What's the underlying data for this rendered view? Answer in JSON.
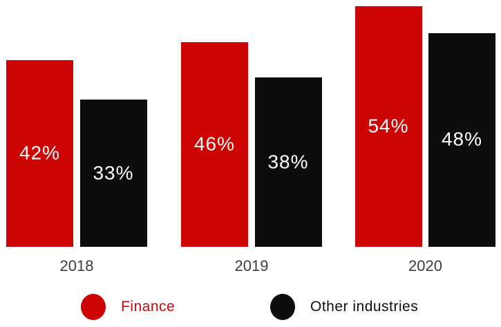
{
  "chart_data": {
    "type": "bar",
    "title": "",
    "xlabel": "",
    "ylabel": "",
    "categories": [
      "2018",
      "2019",
      "2020"
    ],
    "series": [
      {
        "name": "Finance",
        "color": "#cc0404",
        "values": [
          42,
          46,
          54
        ],
        "labels": [
          "42%",
          "46%",
          "54%"
        ]
      },
      {
        "name": "Other industries",
        "color": "#0d0d0d",
        "values": [
          33,
          38,
          48
        ],
        "labels": [
          "33%",
          "38%",
          "48%"
        ]
      }
    ],
    "value_suffix": "%",
    "ylim": [
      0,
      55.5
    ],
    "grid": false,
    "y_axis_visible": false,
    "data_labels": "inside-center",
    "legend_position": "bottom",
    "tick_label_color": "#3d3d3d",
    "data_label_color": "#ffffff"
  }
}
